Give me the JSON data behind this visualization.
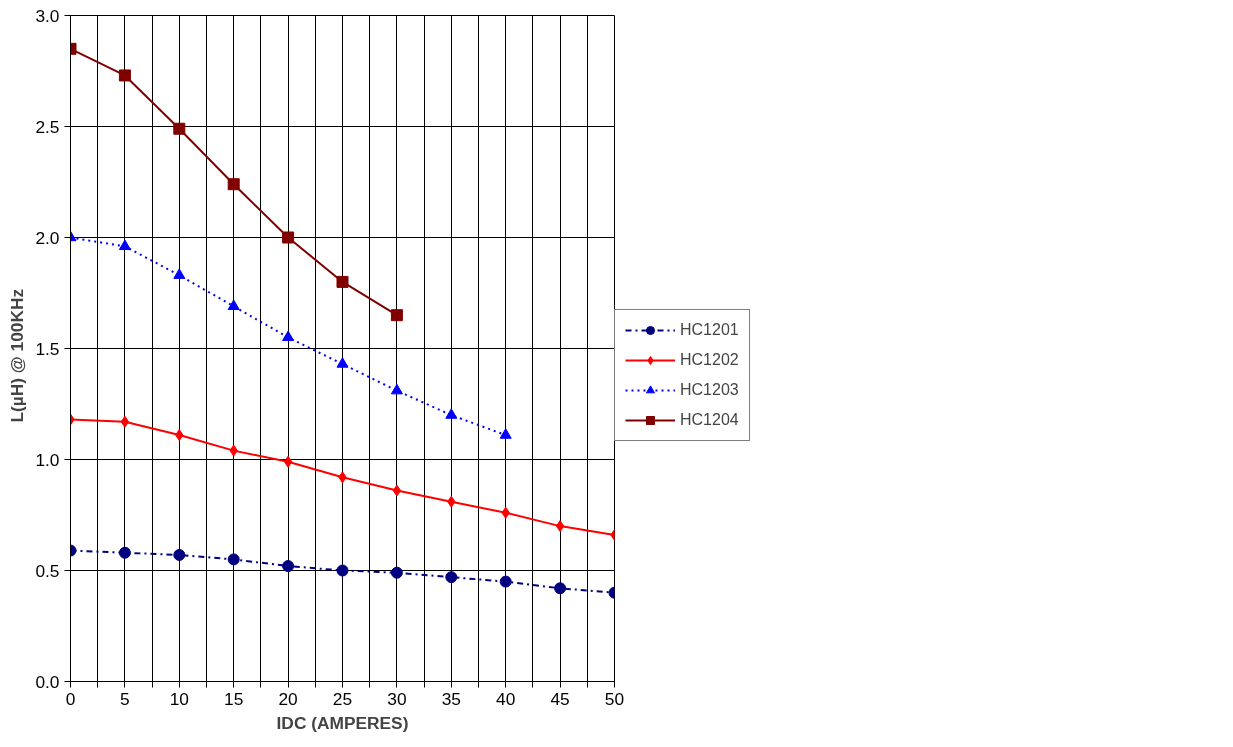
{
  "chart_data": {
    "type": "line",
    "xlabel": "IDC (AMPERES)",
    "ylabel": "L(µH)   @  100KHz",
    "xlim": [
      0,
      50
    ],
    "ylim": [
      0,
      3
    ],
    "xticks": [
      0,
      {
        "value": 2.5,
        "label": null
      },
      5,
      {
        "value": 7.5,
        "label": null
      },
      10,
      {
        "value": 12.5,
        "label": null
      },
      15,
      {
        "value": 17.5,
        "label": null
      },
      20,
      {
        "value": 22.5,
        "label": null
      },
      25,
      {
        "value": 27.5,
        "label": null
      },
      30,
      {
        "value": 32.5,
        "label": null
      },
      35,
      {
        "value": 37.5,
        "label": null
      },
      40,
      {
        "value": 42.5,
        "label": null
      },
      45,
      {
        "value": 47.5,
        "label": null
      },
      50
    ],
    "yticks": [
      {
        "value": 0,
        "label": "0.0"
      },
      {
        "value": 0.5,
        "label": "0.5"
      },
      {
        "value": 1,
        "label": "1.0"
      },
      {
        "value": 1.5,
        "label": "1.5"
      },
      {
        "value": 2,
        "label": "2.0"
      },
      {
        "value": 2.5,
        "label": "2.5"
      },
      {
        "value": 3,
        "label": "3.0"
      }
    ],
    "grid": true,
    "legend": "right",
    "series": [
      {
        "name": "HC1201",
        "color": "#000080",
        "marker": "circle",
        "line_style": "dashdot",
        "x": [
          0,
          5,
          10,
          15,
          20,
          25,
          30,
          35,
          40,
          45,
          50
        ],
        "values": [
          0.59,
          0.58,
          0.57,
          0.55,
          0.52,
          0.5,
          0.49,
          0.47,
          0.45,
          0.42,
          0.4
        ]
      },
      {
        "name": "HC1202",
        "color": "#ff0000",
        "marker": "diamond",
        "line_style": "solid",
        "x": [
          0,
          5,
          10,
          15,
          20,
          25,
          30,
          35,
          40,
          45,
          50
        ],
        "values": [
          1.18,
          1.17,
          1.11,
          1.04,
          0.99,
          0.92,
          0.86,
          0.81,
          0.76,
          0.7,
          0.66
        ]
      },
      {
        "name": "HC1203",
        "color": "#0000ff",
        "marker": "triangle",
        "line_style": "dotted",
        "x": [
          0,
          5,
          10,
          15,
          20,
          25,
          30,
          35,
          40
        ],
        "values": [
          2.0,
          1.96,
          1.83,
          1.69,
          1.55,
          1.43,
          1.31,
          1.2,
          1.11
        ]
      },
      {
        "name": "HC1204",
        "color": "#800000",
        "marker": "square",
        "line_style": "solid",
        "x": [
          0,
          5,
          10,
          15,
          20,
          25,
          30
        ],
        "values": [
          2.85,
          2.73,
          2.49,
          2.24,
          2.0,
          1.8,
          1.65
        ]
      }
    ]
  }
}
